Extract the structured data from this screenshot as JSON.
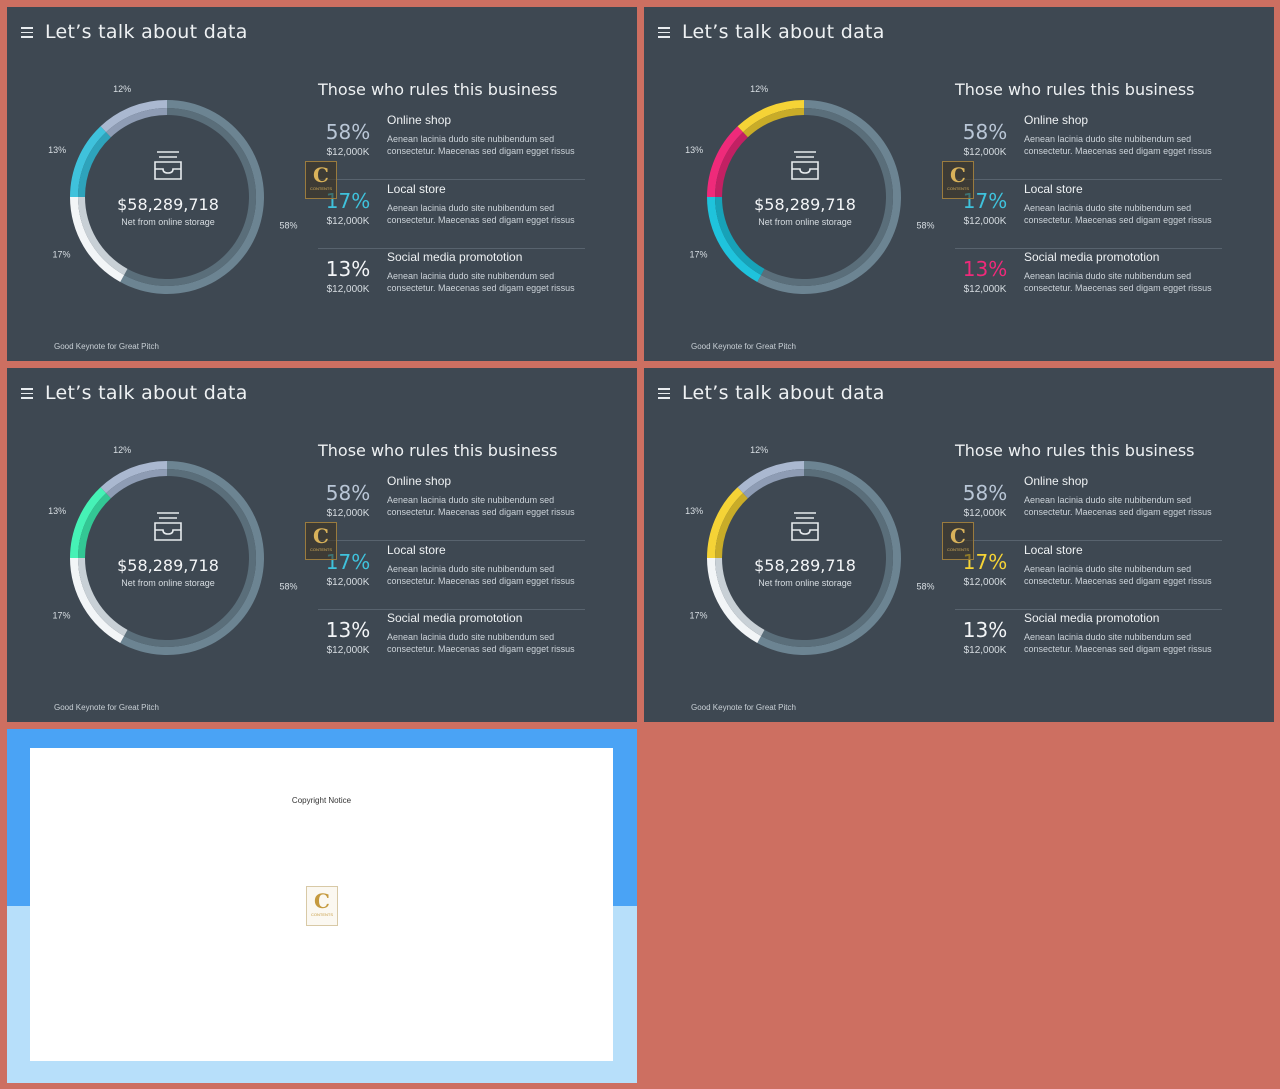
{
  "slide_common": {
    "title": "Let’s talk about data",
    "right_title": "Those who rules this business",
    "amount": "$58,289,718",
    "net_label": "Net from  online storage",
    "footer": "Good Keynote for Great Pitch",
    "badge_letter": "C",
    "badge_text": "CONTENTS",
    "items": [
      {
        "pct": "58%",
        "value": "$12,000K",
        "name": "Online shop",
        "desc": "Aenean lacinia  dudo  site nubibendum sed consectetur. Maecenas sed digam egget rissus"
      },
      {
        "pct": "17%",
        "value": "$12,000K",
        "name": "Local store",
        "desc": "Aenean lacinia  dudo  site nubibendum sed consectetur. Maecenas sed digam egget rissus"
      },
      {
        "pct": "13%",
        "value": "$12,000K",
        "name": "Social media promototion",
        "desc": "Aenean lacinia  dudo  site nubibendum sed consectetur. Maecenas sed digam egget rissus"
      }
    ]
  },
  "slides": [
    {
      "chart_data": {
        "type": "pie",
        "categories": [
          "12%",
          "58%",
          "17%",
          "13%"
        ],
        "values": [
          12,
          58,
          17,
          13
        ],
        "colors": [
          "#aab8d0",
          "#6c8492",
          "#f2f5f7",
          "#3fc2dc"
        ],
        "inner_colors": [
          "#8e9cb4",
          "#5a6e7a",
          "#c8d0d6",
          "#2ea3bb"
        ]
      },
      "pct_colors": [
        "#b9c6d6",
        "#3fc2dc",
        "#f3f5f7"
      ]
    },
    {
      "chart_data": {
        "type": "pie",
        "categories": [
          "12%",
          "58%",
          "17%",
          "13%"
        ],
        "values": [
          12,
          58,
          17,
          13
        ],
        "colors": [
          "#f5d336",
          "#6c8492",
          "#1fc3dc",
          "#ef2a7a"
        ],
        "inner_colors": [
          "#c9ac28",
          "#5a6e7a",
          "#17a2b8",
          "#c22063"
        ]
      },
      "pct_colors": [
        "#b9c6d6",
        "#3fc2dc",
        "#ef2a7a"
      ]
    },
    {
      "chart_data": {
        "type": "pie",
        "categories": [
          "12%",
          "58%",
          "17%",
          "13%"
        ],
        "values": [
          12,
          58,
          17,
          13
        ],
        "colors": [
          "#aab8d0",
          "#6c8492",
          "#f2f5f7",
          "#46f2b6"
        ],
        "inner_colors": [
          "#8e9cb4",
          "#5a6e7a",
          "#c8d0d6",
          "#33c794"
        ]
      },
      "pct_colors": [
        "#b9c6d6",
        "#3fc2dc",
        "#f3f5f7"
      ]
    },
    {
      "chart_data": {
        "type": "pie",
        "categories": [
          "12%",
          "58%",
          "17%",
          "13%"
        ],
        "values": [
          12,
          58,
          17,
          13
        ],
        "colors": [
          "#aab8d0",
          "#6c8492",
          "#f2f5f7",
          "#f5d336"
        ],
        "inner_colors": [
          "#8e9cb4",
          "#5a6e7a",
          "#c8d0d6",
          "#c9ac28"
        ]
      },
      "pct_colors": [
        "#b9c6d6",
        "#f5d336",
        "#f3f5f7"
      ]
    }
  ],
  "copyright": {
    "notice": "Copyright Notice",
    "logo_letter": "C",
    "logo_text": "CONTENTS"
  }
}
